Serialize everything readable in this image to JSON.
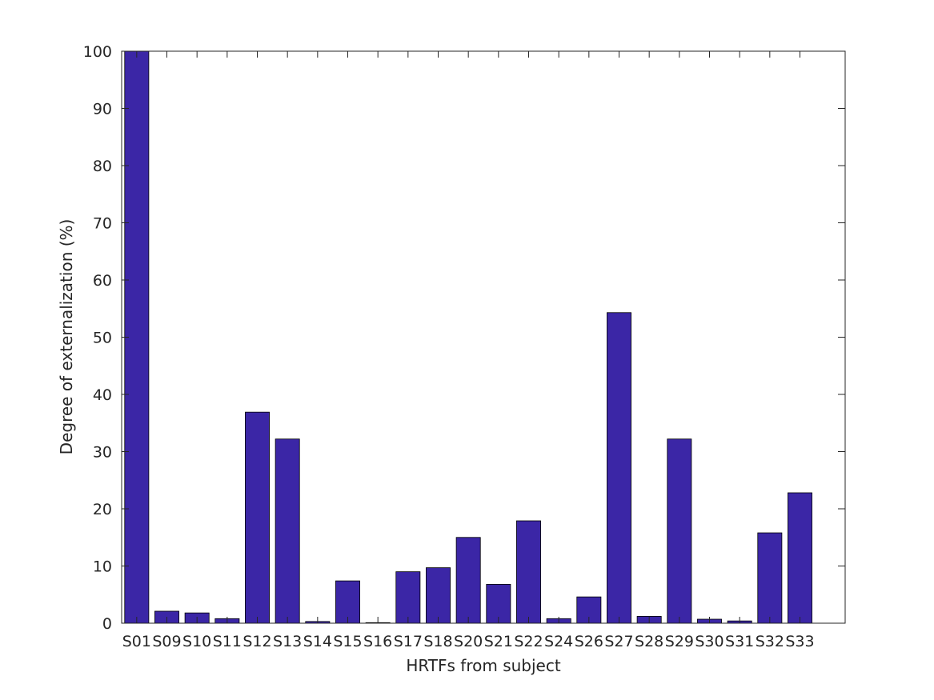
{
  "chart_data": {
    "type": "bar",
    "xlabel": "HRTFs from subject",
    "ylabel": "Degree of externalization (%)",
    "ylim": [
      0,
      100
    ],
    "yticks": [
      0,
      10,
      20,
      30,
      40,
      50,
      60,
      70,
      80,
      90,
      100
    ],
    "categories": [
      "S01",
      "S09",
      "S10",
      "S11",
      "S12",
      "S13",
      "S14",
      "S15",
      "S16",
      "S17",
      "S18",
      "S20",
      "S21",
      "S22",
      "S24",
      "S26",
      "S27",
      "S28",
      "S29",
      "S30",
      "S31",
      "S32",
      "S33"
    ],
    "values": [
      100,
      2.1,
      1.8,
      0.8,
      36.9,
      32.2,
      0.3,
      7.4,
      0.1,
      9.0,
      9.7,
      15.0,
      6.8,
      17.9,
      0.8,
      4.6,
      54.3,
      1.2,
      32.2,
      0.7,
      0.4,
      15.8,
      22.8
    ],
    "bar_color": "#3b26a6",
    "grid": false,
    "legend": "none"
  }
}
